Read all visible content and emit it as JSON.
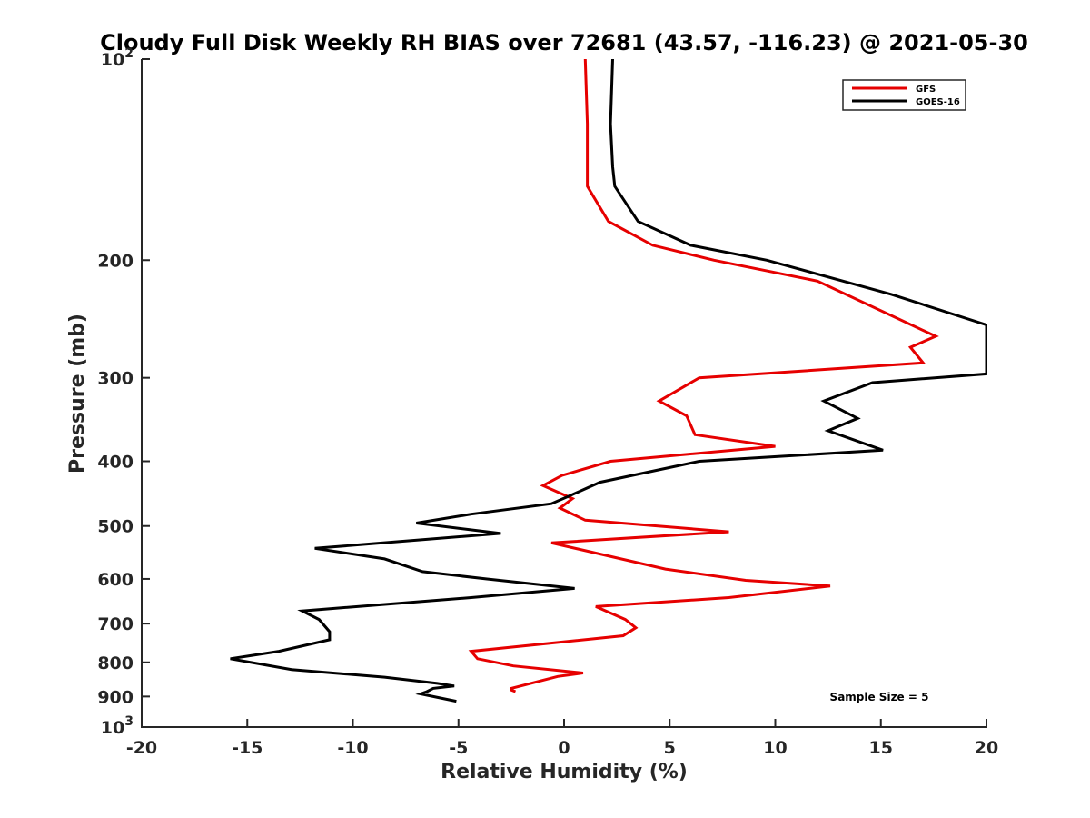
{
  "chart_data": {
    "type": "line",
    "title": "Cloudy Full Disk Weekly RH BIAS over 72681 (43.57, -116.23) @ 2021-05-30",
    "xlabel": "Relative Humidity (%)",
    "ylabel": "Pressure (mb)",
    "xlim": [
      -20,
      20
    ],
    "ylim": [
      100,
      1000
    ],
    "y_scale": "log",
    "y_reversed": true,
    "x_ticks": [
      -20,
      -15,
      -10,
      -5,
      0,
      5,
      10,
      15,
      20
    ],
    "x_tick_labels": [
      "-20",
      "-15",
      "-10",
      "-5",
      "0",
      "5",
      "10",
      "15",
      "20"
    ],
    "y_ticks": [
      {
        "value": 100,
        "base": "10",
        "exp": "2"
      },
      {
        "value": 200,
        "label": "200"
      },
      {
        "value": 300,
        "label": "300"
      },
      {
        "value": 400,
        "label": "400"
      },
      {
        "value": 500,
        "label": "500"
      },
      {
        "value": 600,
        "label": "600"
      },
      {
        "value": 700,
        "label": "700"
      },
      {
        "value": 800,
        "label": "800"
      },
      {
        "value": 900,
        "label": "900"
      },
      {
        "value": 1000,
        "base": "10",
        "exp": "3"
      }
    ],
    "grid": false,
    "legend_position": "top-right",
    "annotation": "Sample Size = 5",
    "series": [
      {
        "name": "GFS",
        "color": "#e60000",
        "points": [
          [
            1.0,
            100
          ],
          [
            1.1,
            125
          ],
          [
            1.1,
            150
          ],
          [
            1.1,
            155
          ],
          [
            2.1,
            175
          ],
          [
            4.2,
            190
          ],
          [
            7.1,
            200
          ],
          [
            12.0,
            215
          ],
          [
            17.6,
            260
          ],
          [
            16.4,
            270
          ],
          [
            17.0,
            285
          ],
          [
            6.4,
            300
          ],
          [
            4.5,
            325
          ],
          [
            5.8,
            342
          ],
          [
            6.2,
            365
          ],
          [
            10.0,
            380
          ],
          [
            2.2,
            400
          ],
          [
            -0.1,
            420
          ],
          [
            -1.0,
            435
          ],
          [
            0.4,
            455
          ],
          [
            -0.2,
            470
          ],
          [
            1.0,
            490
          ],
          [
            7.8,
            510
          ],
          [
            -0.6,
            530
          ],
          [
            4.8,
            580
          ],
          [
            8.6,
            603
          ],
          [
            12.6,
            615
          ],
          [
            7.8,
            640
          ],
          [
            1.5,
            660
          ],
          [
            2.9,
            690
          ],
          [
            3.4,
            710
          ],
          [
            2.8,
            730
          ],
          [
            -4.4,
            770
          ],
          [
            -4.1,
            790
          ],
          [
            -2.4,
            810
          ],
          [
            0.9,
            830
          ],
          [
            -0.3,
            840
          ],
          [
            -2.5,
            875
          ],
          [
            -2.5,
            880
          ],
          [
            -2.3,
            885
          ]
        ]
      },
      {
        "name": "GOES-16",
        "color": "#000000",
        "points": [
          [
            2.3,
            100
          ],
          [
            2.2,
            125
          ],
          [
            2.3,
            145
          ],
          [
            2.4,
            155
          ],
          [
            3.5,
            175
          ],
          [
            6.0,
            190
          ],
          [
            9.6,
            200
          ],
          [
            15.5,
            225
          ],
          [
            20.0,
            250
          ],
          [
            20.0,
            296
          ],
          [
            14.6,
            305
          ],
          [
            12.3,
            325
          ],
          [
            13.9,
            345
          ],
          [
            12.5,
            360
          ],
          [
            15.1,
            385
          ],
          [
            6.4,
            400
          ],
          [
            1.7,
            430
          ],
          [
            0.3,
            450
          ],
          [
            -0.6,
            463
          ],
          [
            -4.4,
            480
          ],
          [
            -7.0,
            495
          ],
          [
            -3.0,
            513
          ],
          [
            -11.8,
            540
          ],
          [
            -8.5,
            560
          ],
          [
            -6.7,
            585
          ],
          [
            -3.7,
            600
          ],
          [
            0.5,
            620
          ],
          [
            -4.4,
            640
          ],
          [
            -12.4,
            670
          ],
          [
            -11.6,
            690
          ],
          [
            -11.1,
            720
          ],
          [
            -11.1,
            740
          ],
          [
            -13.5,
            770
          ],
          [
            -15.8,
            790
          ],
          [
            -12.9,
            820
          ],
          [
            -8.5,
            842
          ],
          [
            -6.0,
            860
          ],
          [
            -5.2,
            868
          ],
          [
            -6.2,
            875
          ],
          [
            -6.5,
            885
          ],
          [
            -6.8,
            892
          ],
          [
            -5.1,
            915
          ]
        ]
      }
    ]
  }
}
